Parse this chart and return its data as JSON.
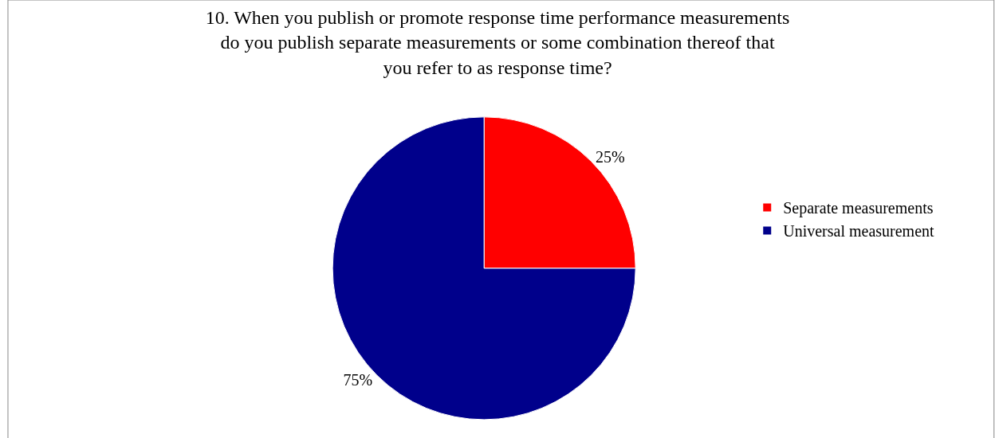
{
  "chart_data": {
    "type": "pie",
    "title": "10. When you publish or promote response time performance measurements\ndo you publish separate measurements or some combination thereof that\nyou refer to as response time?",
    "categories": [
      "Separate measurements",
      "Universal measurement"
    ],
    "values": [
      25,
      75
    ],
    "value_labels": [
      "25%",
      "75%"
    ],
    "colors": [
      "#ff0000",
      "#00008b"
    ],
    "legend": "right"
  }
}
